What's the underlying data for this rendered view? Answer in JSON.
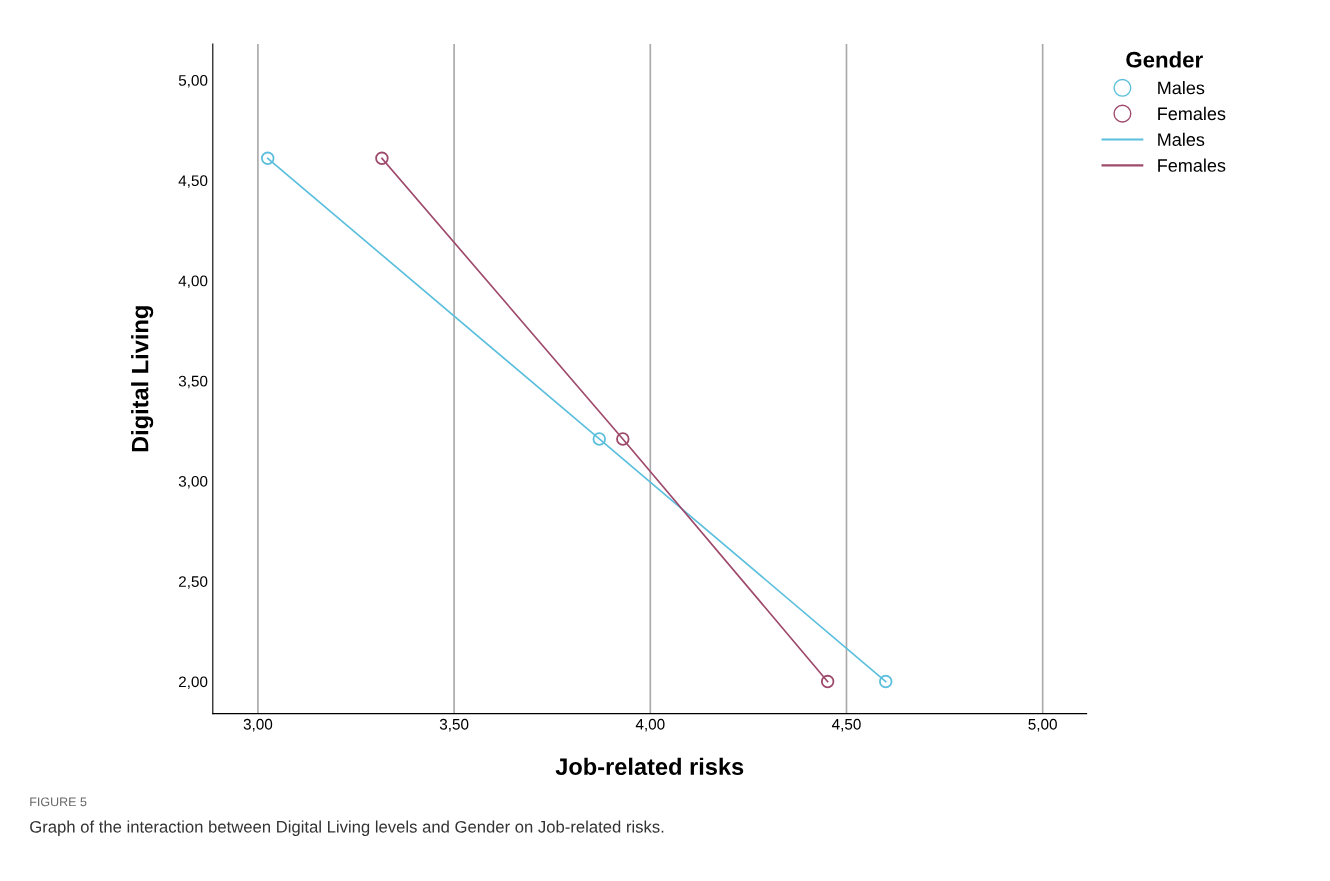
{
  "chart_data": {
    "type": "line",
    "xlabel": "Job-related risks",
    "ylabel": "Digital Living",
    "legend_title": "Gender",
    "legend": "top right",
    "grid": "x",
    "xlim": [
      2.885,
      5.112
    ],
    "ylim": [
      1.84,
      5.18
    ],
    "xticks": [
      {
        "value": 3,
        "label": "3,00"
      },
      {
        "value": 3.5,
        "label": "3,50"
      },
      {
        "value": 4,
        "label": "4,00"
      },
      {
        "value": 4.5,
        "label": "4,50"
      },
      {
        "value": 5,
        "label": "5,00"
      }
    ],
    "yticks": [
      {
        "value": 2,
        "label": "2,00"
      },
      {
        "value": 2.5,
        "label": "2,50"
      },
      {
        "value": 3,
        "label": "3,00"
      },
      {
        "value": 3.5,
        "label": "3,50"
      },
      {
        "value": 4,
        "label": "4,00"
      },
      {
        "value": 4.5,
        "label": "4,50"
      },
      {
        "value": 5,
        "label": "5,00"
      }
    ],
    "series": [
      {
        "name": "Males",
        "type": "scatter",
        "marker": "circle",
        "color": "#5bbfdd",
        "x": [
          3.025,
          3.87,
          4.6
        ],
        "values": [
          4.61,
          3.21,
          2.0
        ]
      },
      {
        "name": "Females",
        "type": "scatter",
        "marker": "circle",
        "color": "#9e4a6c",
        "x": [
          3.316,
          3.93,
          4.452
        ],
        "values": [
          4.61,
          3.21,
          2.0
        ]
      },
      {
        "name": "Males",
        "marker": "none",
        "color": "#5bbfdd",
        "x": [
          3.025,
          3.87,
          4.6
        ],
        "values": [
          4.61,
          3.21,
          2.0
        ]
      },
      {
        "name": "Females",
        "marker": "none",
        "color": "#9e4a6c",
        "x": [
          3.316,
          3.93,
          4.452
        ],
        "values": [
          4.61,
          3.21,
          2.0
        ]
      }
    ],
    "annotations": [
      "FIGURE 5",
      "Graph of the interaction between Digital Living levels and Gender on Job-related risks."
    ]
  }
}
